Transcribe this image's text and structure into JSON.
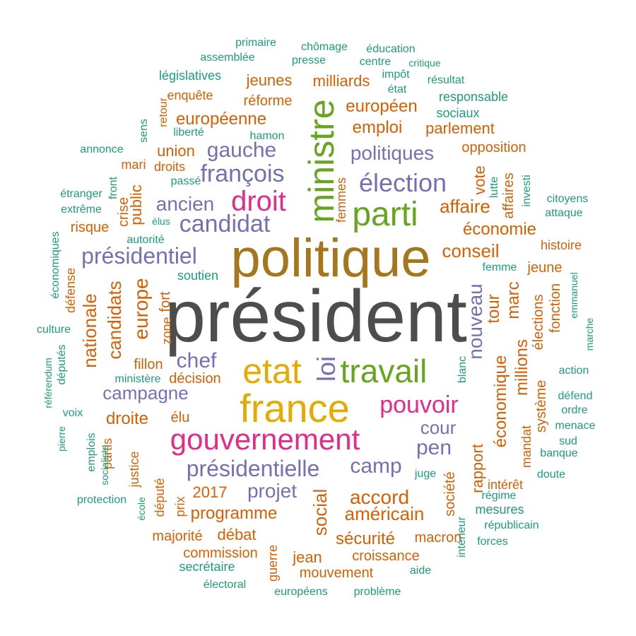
{
  "palette": {
    "gray": "#4d4d4d",
    "brown": "#a6761d",
    "gold": "#e6ab02",
    "green": "#66a61e",
    "magenta": "#e7298a",
    "purple": "#7570b3",
    "orange": "#d95f02",
    "teal": "#1b9e77"
  },
  "words": [
    {
      "text": "président",
      "color": "gray"
    },
    {
      "text": "politique",
      "color": "brown"
    },
    {
      "text": "france",
      "color": "gold"
    },
    {
      "text": "etat",
      "color": "gold"
    },
    {
      "text": "ministre",
      "color": "green"
    },
    {
      "text": "parti",
      "color": "green"
    },
    {
      "text": "travail",
      "color": "green"
    },
    {
      "text": "loi",
      "color": "purple"
    },
    {
      "text": "gouvernement",
      "color": "magenta"
    },
    {
      "text": "droit",
      "color": "magenta"
    },
    {
      "text": "pouvoir",
      "color": "magenta"
    },
    {
      "text": "élection",
      "color": "purple"
    },
    {
      "text": "françois",
      "color": "purple"
    },
    {
      "text": "candidat",
      "color": "purple"
    },
    {
      "text": "présidentielle",
      "color": "purple"
    },
    {
      "text": "présidentiel",
      "color": "purple"
    },
    {
      "text": "gauche",
      "color": "purple"
    },
    {
      "text": "politiques",
      "color": "purple"
    },
    {
      "text": "ancien",
      "color": "purple"
    },
    {
      "text": "campagne",
      "color": "purple"
    },
    {
      "text": "chef",
      "color": "purple"
    },
    {
      "text": "camp",
      "color": "purple"
    },
    {
      "text": "pen",
      "color": "purple"
    },
    {
      "text": "cour",
      "color": "purple"
    },
    {
      "text": "projet",
      "color": "purple"
    },
    {
      "text": "nouveau",
      "color": "purple"
    },
    {
      "text": "européenne",
      "color": "orange"
    },
    {
      "text": "européen",
      "color": "orange"
    },
    {
      "text": "emploi",
      "color": "orange"
    },
    {
      "text": "parlement",
      "color": "orange"
    },
    {
      "text": "union",
      "color": "orange"
    },
    {
      "text": "opposition",
      "color": "orange"
    },
    {
      "text": "affaire",
      "color": "orange"
    },
    {
      "text": "économie",
      "color": "orange"
    },
    {
      "text": "conseil",
      "color": "orange"
    },
    {
      "text": "jeunes",
      "color": "orange"
    },
    {
      "text": "milliards",
      "color": "orange"
    },
    {
      "text": "enquête",
      "color": "orange"
    },
    {
      "text": "réforme",
      "color": "orange"
    },
    {
      "text": "europe",
      "color": "orange"
    },
    {
      "text": "candidats",
      "color": "orange"
    },
    {
      "text": "nationale",
      "color": "orange"
    },
    {
      "text": "droite",
      "color": "orange"
    },
    {
      "text": "accord",
      "color": "orange"
    },
    {
      "text": "américain",
      "color": "orange"
    },
    {
      "text": "programme",
      "color": "orange"
    },
    {
      "text": "sécurité",
      "color": "orange"
    },
    {
      "text": "social",
      "color": "orange"
    },
    {
      "text": "2017",
      "color": "orange"
    },
    {
      "text": "débat",
      "color": "orange"
    },
    {
      "text": "commission",
      "color": "orange"
    },
    {
      "text": "croissance",
      "color": "orange"
    },
    {
      "text": "mouvement",
      "color": "orange"
    },
    {
      "text": "jean",
      "color": "orange"
    },
    {
      "text": "macron",
      "color": "orange"
    },
    {
      "text": "majorité",
      "color": "orange"
    },
    {
      "text": "économique",
      "color": "orange"
    },
    {
      "text": "millions",
      "color": "orange"
    },
    {
      "text": "rapport",
      "color": "orange"
    },
    {
      "text": "marc",
      "color": "orange"
    },
    {
      "text": "tour",
      "color": "orange"
    },
    {
      "text": "société",
      "color": "orange"
    },
    {
      "text": "système",
      "color": "orange"
    },
    {
      "text": "élections",
      "color": "orange"
    },
    {
      "text": "fonction",
      "color": "orange"
    },
    {
      "text": "mandat",
      "color": "orange"
    },
    {
      "text": "intérêt",
      "color": "orange"
    },
    {
      "text": "histoire",
      "color": "orange"
    },
    {
      "text": "jeune",
      "color": "orange"
    },
    {
      "text": "vote",
      "color": "orange"
    },
    {
      "text": "affaires",
      "color": "orange"
    },
    {
      "text": "public",
      "color": "orange"
    },
    {
      "text": "crise",
      "color": "orange"
    },
    {
      "text": "risque",
      "color": "orange"
    },
    {
      "text": "mari",
      "color": "orange"
    },
    {
      "text": "droits",
      "color": "orange"
    },
    {
      "text": "fillon",
      "color": "orange"
    },
    {
      "text": "décision",
      "color": "orange"
    },
    {
      "text": "élu",
      "color": "orange"
    },
    {
      "text": "fort",
      "color": "orange"
    },
    {
      "text": "zone",
      "color": "orange"
    },
    {
      "text": "défense",
      "color": "orange"
    },
    {
      "text": "partis",
      "color": "orange"
    },
    {
      "text": "justice",
      "color": "orange"
    },
    {
      "text": "député",
      "color": "orange"
    },
    {
      "text": "prix",
      "color": "orange"
    },
    {
      "text": "guerre",
      "color": "orange"
    },
    {
      "text": "femmes",
      "color": "orange"
    },
    {
      "text": "retour",
      "color": "orange"
    },
    {
      "text": "sens",
      "color": "teal"
    },
    {
      "text": "primaire",
      "color": "teal"
    },
    {
      "text": "chômage",
      "color": "teal"
    },
    {
      "text": "éducation",
      "color": "teal"
    },
    {
      "text": "assemblée",
      "color": "teal"
    },
    {
      "text": "presse",
      "color": "teal"
    },
    {
      "text": "centre",
      "color": "teal"
    },
    {
      "text": "critique",
      "color": "teal"
    },
    {
      "text": "législatives",
      "color": "teal"
    },
    {
      "text": "impôt",
      "color": "teal"
    },
    {
      "text": "résultat",
      "color": "teal"
    },
    {
      "text": "état",
      "color": "teal"
    },
    {
      "text": "responsable",
      "color": "teal"
    },
    {
      "text": "sociaux",
      "color": "teal"
    },
    {
      "text": "liberté",
      "color": "teal"
    },
    {
      "text": "hamon",
      "color": "teal"
    },
    {
      "text": "annonce",
      "color": "teal"
    },
    {
      "text": "passé",
      "color": "teal"
    },
    {
      "text": "étranger",
      "color": "teal"
    },
    {
      "text": "extrême",
      "color": "teal"
    },
    {
      "text": "front",
      "color": "teal"
    },
    {
      "text": "élus",
      "color": "teal"
    },
    {
      "text": "autorité",
      "color": "teal"
    },
    {
      "text": "soutien",
      "color": "teal"
    },
    {
      "text": "économiques",
      "color": "teal"
    },
    {
      "text": "culture",
      "color": "teal"
    },
    {
      "text": "référendum",
      "color": "teal"
    },
    {
      "text": "députés",
      "color": "teal"
    },
    {
      "text": "ministère",
      "color": "teal"
    },
    {
      "text": "voix",
      "color": "teal"
    },
    {
      "text": "pierre",
      "color": "teal"
    },
    {
      "text": "emplois",
      "color": "teal"
    },
    {
      "text": "socialiste",
      "color": "teal"
    },
    {
      "text": "protection",
      "color": "teal"
    },
    {
      "text": "école",
      "color": "teal"
    },
    {
      "text": "secrétaire",
      "color": "teal"
    },
    {
      "text": "électoral",
      "color": "teal"
    },
    {
      "text": "européens",
      "color": "teal"
    },
    {
      "text": "problème",
      "color": "teal"
    },
    {
      "text": "aide",
      "color": "teal"
    },
    {
      "text": "intérieur",
      "color": "teal"
    },
    {
      "text": "forces",
      "color": "teal"
    },
    {
      "text": "républicain",
      "color": "teal"
    },
    {
      "text": "mesures",
      "color": "teal"
    },
    {
      "text": "régime",
      "color": "teal"
    },
    {
      "text": "juge",
      "color": "teal"
    },
    {
      "text": "blanc",
      "color": "teal"
    },
    {
      "text": "doute",
      "color": "teal"
    },
    {
      "text": "banque",
      "color": "teal"
    },
    {
      "text": "sud",
      "color": "teal"
    },
    {
      "text": "menace",
      "color": "teal"
    },
    {
      "text": "ordre",
      "color": "teal"
    },
    {
      "text": "défend",
      "color": "teal"
    },
    {
      "text": "action",
      "color": "teal"
    },
    {
      "text": "marche",
      "color": "teal"
    },
    {
      "text": "emmanuel",
      "color": "teal"
    },
    {
      "text": "femme",
      "color": "teal"
    },
    {
      "text": "citoyens",
      "color": "teal"
    },
    {
      "text": "attaque",
      "color": "teal"
    },
    {
      "text": "lutte",
      "color": "teal"
    },
    {
      "text": "investi",
      "color": "teal"
    }
  ]
}
